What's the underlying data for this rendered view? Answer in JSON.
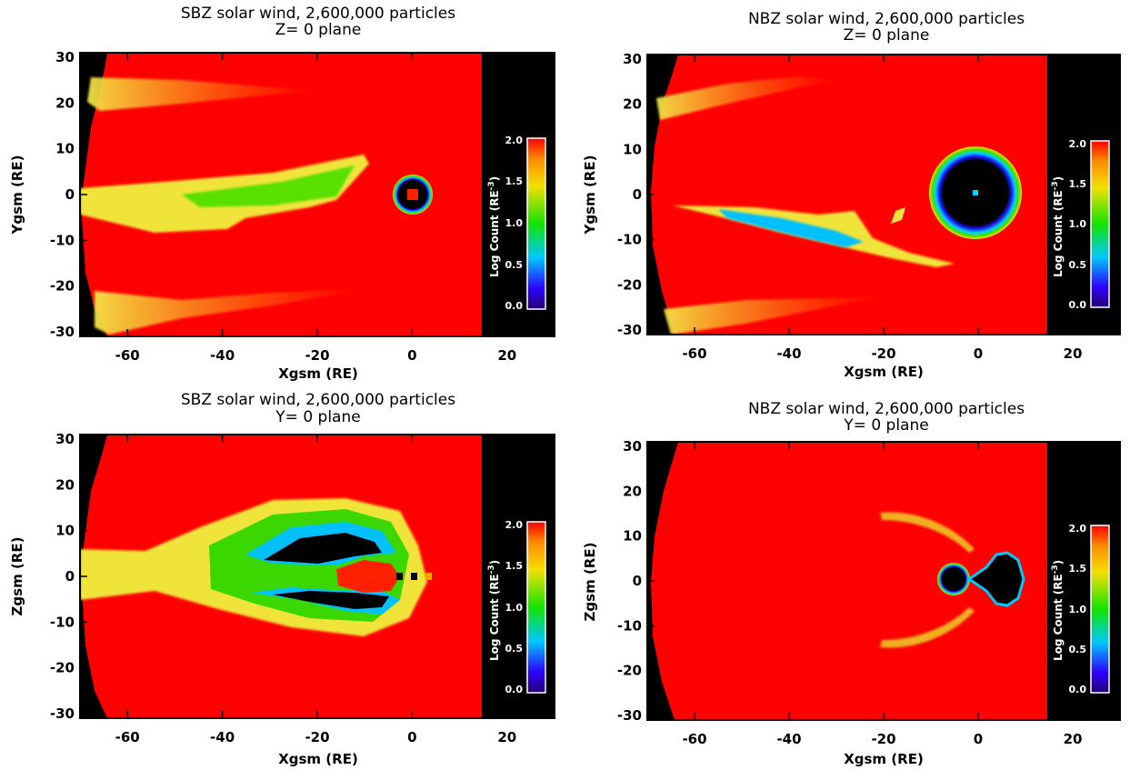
{
  "chart_data": [
    {
      "type": "heatmap",
      "title": "SBZ solar wind, 2,600,000 particles",
      "subtitle": "Z= 0 plane",
      "xlabel": "Xgsm (RE)",
      "ylabel": "Ygsm (RE)",
      "xlim": [
        -70,
        30
      ],
      "ylim": [
        -31,
        31
      ],
      "xticks": [
        -60,
        -40,
        -20,
        0,
        20
      ],
      "yticks": [
        -30,
        -20,
        -10,
        0,
        10,
        20,
        30
      ],
      "grid": false,
      "colorbar": {
        "label": "Log Count (RE",
        "label_sup": "-3",
        "label_end": ")",
        "range": [
          0.0,
          2.0
        ],
        "ticks": [
          "0.0",
          "0.5",
          "1.0",
          "1.5",
          "2.0"
        ]
      },
      "background_value": 2.0,
      "empty_region_x": [
        15,
        30
      ],
      "features": [
        {
          "kind": "band",
          "x": [
            -66,
            -20
          ],
          "y": [
            17,
            23
          ],
          "value": 1.6
        },
        {
          "kind": "band",
          "x": [
            -66,
            -10
          ],
          "y": [
            -31,
            -20
          ],
          "value": 1.6
        },
        {
          "kind": "wedge",
          "x": [
            -70,
            -10
          ],
          "y": [
            -10,
            8
          ],
          "value": 1.3
        },
        {
          "kind": "ring",
          "center": [
            0,
            0
          ],
          "radius": [
            1.5,
            4
          ],
          "values": [
            0.0,
            1.0
          ]
        }
      ]
    },
    {
      "type": "heatmap",
      "title": "NBZ solar wind, 2,600,000 particles",
      "subtitle": "Z= 0 plane",
      "xlabel": "Xgsm (RE)",
      "ylabel": "Ygsm (RE)",
      "xlim": [
        -70,
        30
      ],
      "ylim": [
        -31,
        31
      ],
      "xticks": [
        -60,
        -40,
        -20,
        0,
        20
      ],
      "yticks": [
        -30,
        -20,
        -10,
        0,
        10,
        20,
        30
      ],
      "grid": false,
      "colorbar": {
        "label": "Log Count (RE",
        "label_sup": "-3",
        "label_end": ")",
        "range": [
          0.0,
          2.0
        ],
        "ticks": [
          "0.0",
          "0.5",
          "1.0",
          "1.5",
          "2.0"
        ]
      },
      "background_value": 2.0,
      "empty_region_x": [
        15,
        30
      ],
      "features": [
        {
          "kind": "band",
          "x": [
            -68,
            -30
          ],
          "y": [
            17,
            26
          ],
          "value": 1.6
        },
        {
          "kind": "band",
          "x": [
            -68,
            -22
          ],
          "y": [
            -31,
            -24
          ],
          "value": 1.6
        },
        {
          "kind": "tail",
          "x": [
            -68,
            -8
          ],
          "y": [
            -15,
            -2
          ],
          "value": 1.0
        },
        {
          "kind": "disk",
          "center": [
            0,
            0
          ],
          "radius": 9,
          "value": 0.0,
          "rim": 1.2
        }
      ]
    },
    {
      "type": "heatmap",
      "title": "SBZ solar wind, 2,600,000 particles",
      "subtitle": "Y= 0 plane",
      "xlabel": "Xgsm (RE)",
      "ylabel": "Zgsm (RE)",
      "xlim": [
        -70,
        30
      ],
      "ylim": [
        -31,
        31
      ],
      "xticks": [
        -60,
        -40,
        -20,
        0,
        20
      ],
      "yticks": [
        -30,
        -20,
        -10,
        0,
        10,
        20,
        30
      ],
      "grid": false,
      "colorbar": {
        "label": "Log Count (RE",
        "label_sup": "-3",
        "label_end": ")",
        "range": [
          0.0,
          2.0
        ],
        "ticks": [
          "0.0",
          "0.5",
          "1.0",
          "1.5",
          "2.0"
        ]
      },
      "background_value": 2.0,
      "empty_region_x": [
        15,
        30
      ],
      "features": [
        {
          "kind": "lobes",
          "x": [
            -52,
            0
          ],
          "z": [
            -11,
            15
          ],
          "value": 0.0,
          "rim": 1.1
        },
        {
          "kind": "sheet",
          "x": [
            -70,
            -40
          ],
          "z": [
            -6,
            6
          ],
          "value": 1.6
        },
        {
          "kind": "dots",
          "x": [
            -3,
            5
          ],
          "z": [
            0,
            0
          ],
          "value": 0.0
        }
      ]
    },
    {
      "type": "heatmap",
      "title": "NBZ solar wind, 2,600,000 particles",
      "subtitle": "Y= 0 plane",
      "xlabel": "Xgsm (RE)",
      "ylabel": "Zgsm (RE)",
      "xlim": [
        -70,
        30
      ],
      "ylim": [
        -31,
        31
      ],
      "xticks": [
        -60,
        -40,
        -20,
        0,
        20
      ],
      "yticks": [
        -30,
        -20,
        -10,
        0,
        10,
        20,
        30
      ],
      "grid": false,
      "colorbar": {
        "label": "Log Count (RE",
        "label_sup": "-3",
        "label_end": ")",
        "range": [
          0.0,
          2.0
        ],
        "ticks": [
          "0.0",
          "0.5",
          "1.0",
          "1.5",
          "2.0"
        ]
      },
      "background_value": 2.0,
      "empty_region_x": [
        15,
        30
      ],
      "features": [
        {
          "kind": "arcs",
          "x": [
            -20,
            2
          ],
          "z": [
            -15,
            15
          ],
          "value": 1.6
        },
        {
          "kind": "blob",
          "center": [
            -7,
            0
          ],
          "radius": 3.5,
          "value": 0.0
        },
        {
          "kind": "blob",
          "center": [
            5,
            0
          ],
          "radius": 5,
          "value": 0.0
        }
      ]
    }
  ]
}
